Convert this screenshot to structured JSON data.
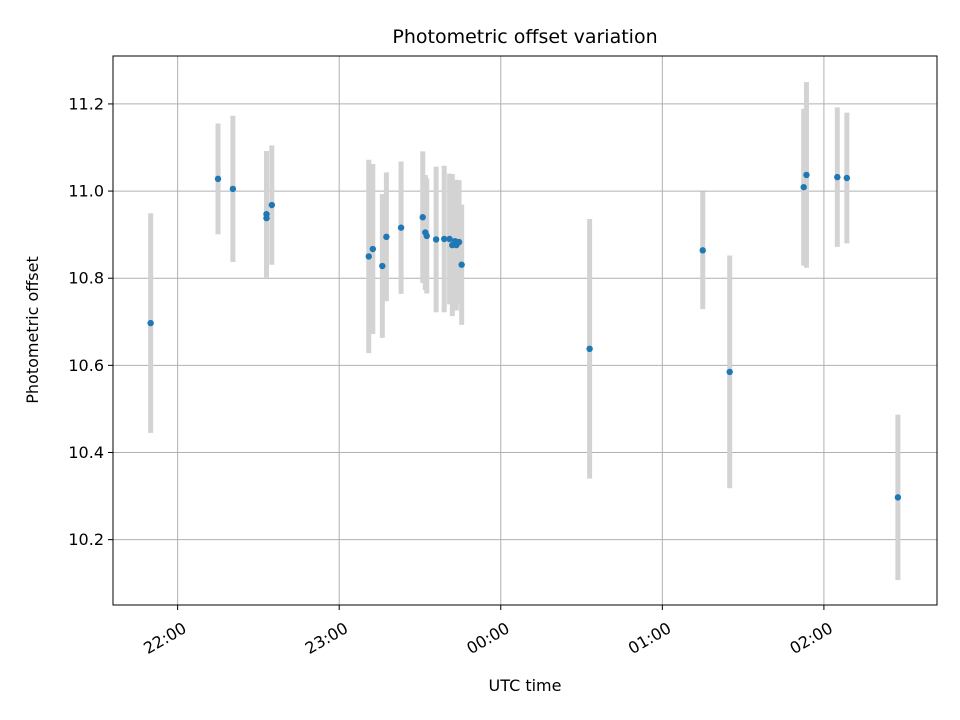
{
  "chart_data": {
    "type": "scatter",
    "title": "Photometric offset variation",
    "xlabel": "UTC time",
    "ylabel": "Photometric offset",
    "x_units": "hours (UTC clock, values past 24 continue into next day)",
    "xlim": [
      21.6,
      26.7
    ],
    "ylim": [
      10.05,
      11.31
    ],
    "xticks": [
      {
        "value": 22,
        "label": "22:00"
      },
      {
        "value": 23,
        "label": "23:00"
      },
      {
        "value": 24,
        "label": "00:00"
      },
      {
        "value": 25,
        "label": "01:00"
      },
      {
        "value": 26,
        "label": "02:00"
      }
    ],
    "yticks": [
      {
        "value": 10.2,
        "label": "10.2"
      },
      {
        "value": 10.4,
        "label": "10.4"
      },
      {
        "value": 10.6,
        "label": "10.6"
      },
      {
        "value": 10.8,
        "label": "10.8"
      },
      {
        "value": 11.0,
        "label": "11.0"
      },
      {
        "value": 11.2,
        "label": "11.2"
      }
    ],
    "grid": true,
    "colors": {
      "marker": "#1f77b4",
      "errorbar": "#d3d3d3",
      "grid": "#b0b0b0"
    },
    "points": [
      {
        "x": 21.833,
        "y": 10.697,
        "err": 0.252
      },
      {
        "x": 22.25,
        "y": 11.028,
        "err": 0.127
      },
      {
        "x": 22.342,
        "y": 11.005,
        "err": 0.168
      },
      {
        "x": 22.55,
        "y": 10.947,
        "err": 0.145
      },
      {
        "x": 22.55,
        "y": 10.938,
        "err": 0.135
      },
      {
        "x": 22.583,
        "y": 10.968,
        "err": 0.137
      },
      {
        "x": 23.183,
        "y": 10.85,
        "err": 0.222
      },
      {
        "x": 23.208,
        "y": 10.867,
        "err": 0.195
      },
      {
        "x": 23.267,
        "y": 10.828,
        "err": 0.165
      },
      {
        "x": 23.292,
        "y": 10.895,
        "err": 0.148
      },
      {
        "x": 23.383,
        "y": 10.916,
        "err": 0.152
      },
      {
        "x": 23.517,
        "y": 10.94,
        "err": 0.151
      },
      {
        "x": 23.533,
        "y": 10.905,
        "err": 0.132
      },
      {
        "x": 23.542,
        "y": 10.897,
        "err": 0.132
      },
      {
        "x": 23.6,
        "y": 10.889,
        "err": 0.167
      },
      {
        "x": 23.65,
        "y": 10.89,
        "err": 0.168
      },
      {
        "x": 23.683,
        "y": 10.89,
        "err": 0.15
      },
      {
        "x": 23.7,
        "y": 10.876,
        "err": 0.163
      },
      {
        "x": 23.717,
        "y": 10.885,
        "err": 0.14
      },
      {
        "x": 23.725,
        "y": 10.876,
        "err": 0.15
      },
      {
        "x": 23.742,
        "y": 10.883,
        "err": 0.142
      },
      {
        "x": 23.758,
        "y": 10.831,
        "err": 0.138
      },
      {
        "x": 24.55,
        "y": 10.638,
        "err": 0.298
      },
      {
        "x": 25.25,
        "y": 10.864,
        "err": 0.135
      },
      {
        "x": 25.417,
        "y": 10.585,
        "err": 0.267
      },
      {
        "x": 25.875,
        "y": 11.009,
        "err": 0.18
      },
      {
        "x": 25.892,
        "y": 11.037,
        "err": 0.213
      },
      {
        "x": 26.083,
        "y": 11.032,
        "err": 0.16
      },
      {
        "x": 26.142,
        "y": 11.03,
        "err": 0.15
      },
      {
        "x": 26.458,
        "y": 10.297,
        "err": 0.19
      }
    ]
  }
}
